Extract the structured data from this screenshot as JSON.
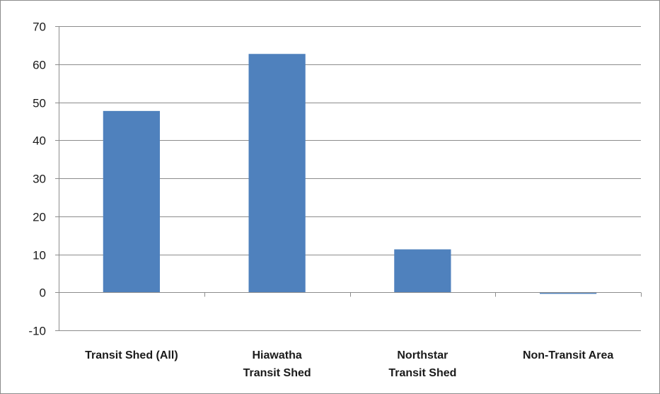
{
  "chart_data": {
    "type": "bar",
    "title": "",
    "xlabel": "",
    "ylabel": "",
    "categories": [
      [
        "Transit Shed (All)"
      ],
      [
        "Hiawatha",
        "Transit Shed"
      ],
      [
        "Northstar",
        "Transit Shed"
      ],
      [
        "Non-Transit Area"
      ]
    ],
    "values": [
      47.7,
      62.7,
      11.3,
      -0.4
    ],
    "ylim": [
      -10,
      70
    ],
    "yticks": [
      -10,
      0,
      10,
      20,
      30,
      40,
      50,
      60,
      70
    ],
    "grid": true,
    "legend": "none",
    "bar_color": "#4f81bd",
    "grid_color": "#8c8c8c",
    "axis_color": "#8c8c8c"
  }
}
